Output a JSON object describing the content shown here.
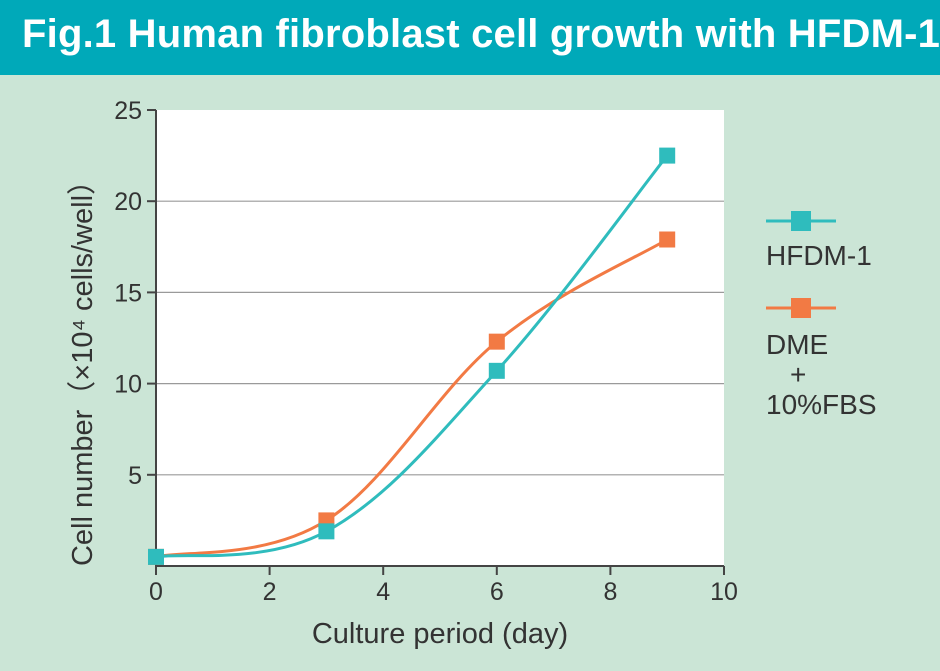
{
  "title": "Fig.1 Human fibroblast cell growth with HFDM-1",
  "colors": {
    "background": "#cbe5d6",
    "title_bar": "#00a9b9",
    "hfdm": "#2fbcbd",
    "dme": "#f27a44",
    "plot_area": "#ffffff",
    "grid": "#9a9a9a"
  },
  "chart_data": {
    "type": "line",
    "xlabel": "Culture period (day)",
    "ylabel": "Cell number（×10⁴ cells/well）",
    "xlim": [
      0,
      10
    ],
    "ylim": [
      0,
      25
    ],
    "xticks": [
      0,
      2,
      4,
      6,
      8,
      10
    ],
    "yticks": [
      5,
      10,
      15,
      20,
      25
    ],
    "grid": "horizontal",
    "legend_position": "right",
    "series": [
      {
        "name": "HFDM-1",
        "x": [
          0,
          3,
          6,
          9
        ],
        "y": [
          0.5,
          1.9,
          10.7,
          22.5
        ]
      },
      {
        "name": "DME + 10%FBS",
        "x": [
          0,
          3,
          6,
          9
        ],
        "y": [
          0.5,
          2.5,
          12.3,
          17.9
        ]
      }
    ]
  },
  "legend": {
    "hfdm_label": "HFDM-1",
    "dme_line1": "DME",
    "dme_line2": "+",
    "dme_line3": "10%FBS"
  }
}
